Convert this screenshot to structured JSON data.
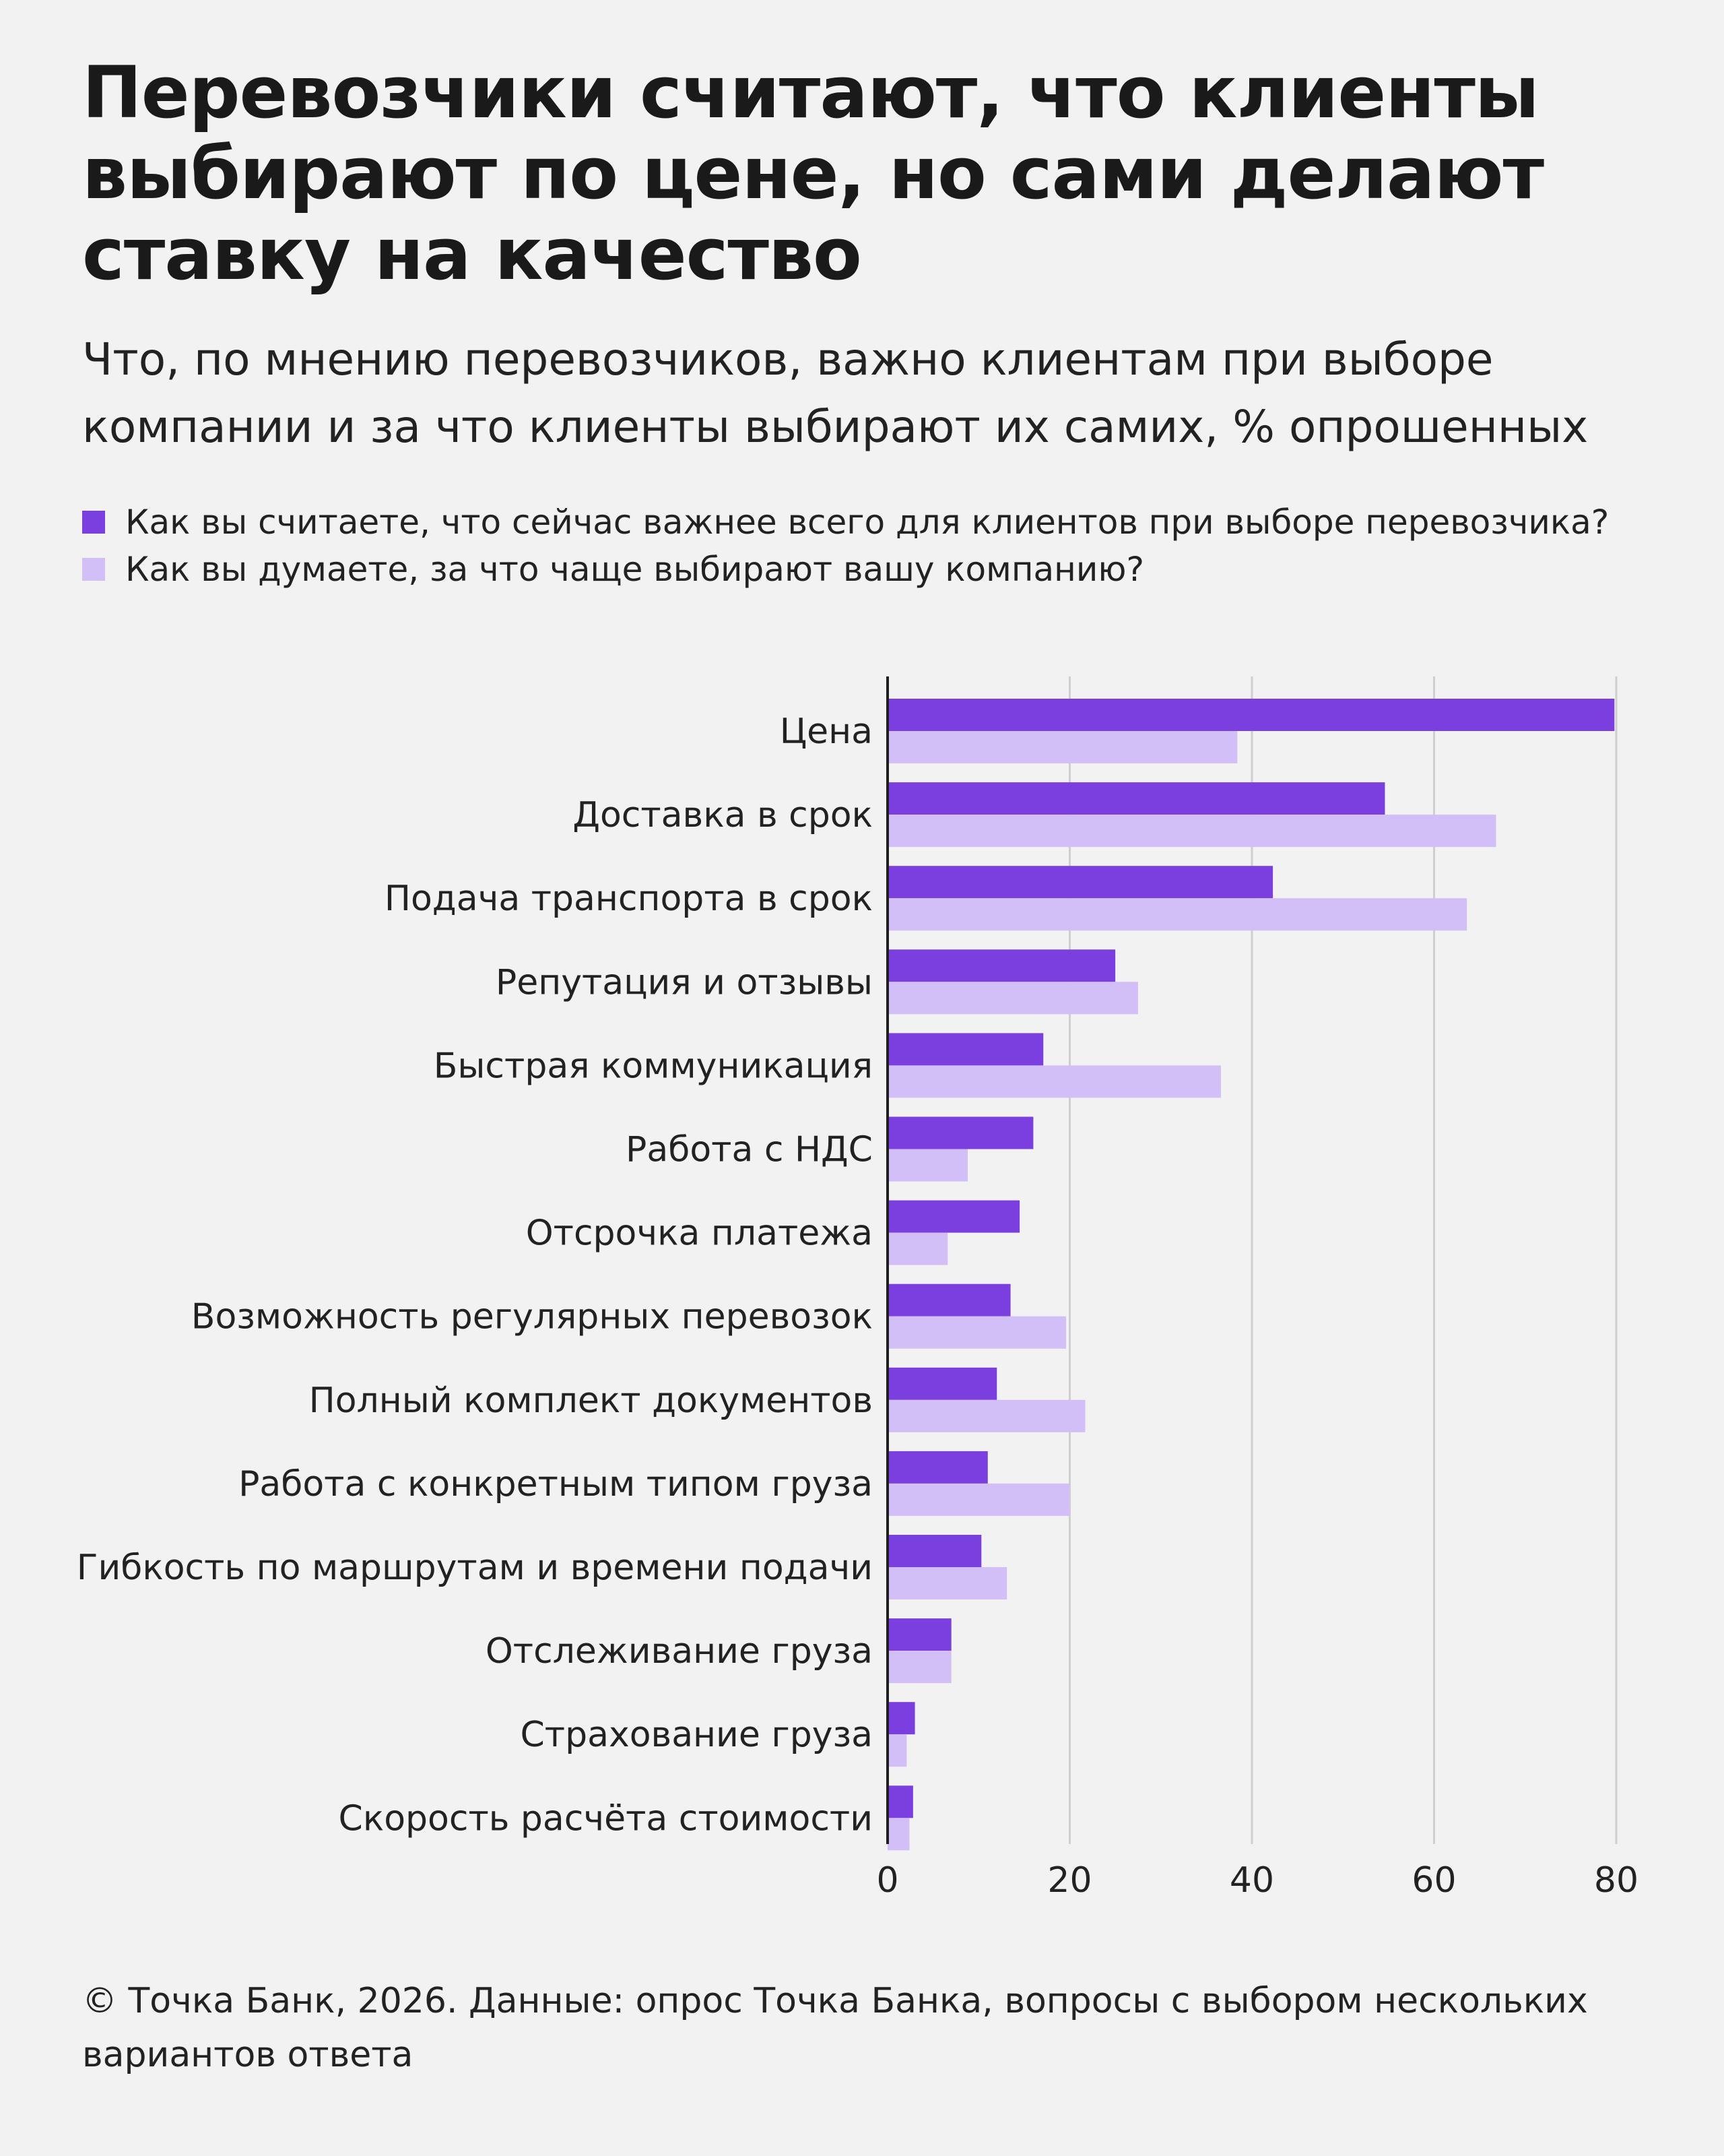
{
  "title": {
    "line1": "Перевозчики считают, что клиенты",
    "line2": "выбирают по цене, но сами делают",
    "line3": "ставку на качество"
  },
  "subtitle": {
    "line1": "Что, по мнению перевозчиков, важно клиентам при выборе",
    "line2": "компании и за что клиенты выбирают их самих, % опрошенных"
  },
  "footer": {
    "line1": "© Точка Банк, 2026. Данные: опрос Точка Банка, вопросы с выбором нескольких",
    "line2": "вариантов ответа"
  },
  "chart_data": {
    "type": "bar",
    "orientation": "horizontal",
    "categories": [
      "Цена",
      "Доставка в срок",
      "Подача транспорта в срок",
      "Репутация и отзывы",
      "Быстрая коммуникация",
      "Работа с НДС",
      "Отсрочка платежа",
      "Возможность регулярных перевозок",
      "Полный комплект документов",
      "Работа с конкретным типом груза",
      "Гибкость по маршрутам и времени подачи",
      "Отслеживание груза",
      "Страхование груза",
      "Скорость расчёта стоимости"
    ],
    "series": [
      {
        "name": "Как вы считаете, что сейчас важнее всего для клиентов при выборе перевозчика?",
        "color": "#7b3fe0",
        "values": [
          79.8,
          54.6,
          42.3,
          25.0,
          17.1,
          16.0,
          14.5,
          13.5,
          12.0,
          11.0,
          10.3,
          7.0,
          3.0,
          2.8
        ]
      },
      {
        "name": "Как вы думаете, за что чаще выбирают вашу компанию?",
        "color": "#d3bff7",
        "values": [
          38.4,
          66.8,
          63.6,
          27.5,
          36.6,
          8.8,
          6.6,
          19.6,
          21.7,
          20.0,
          13.1,
          7.0,
          2.1,
          2.4
        ]
      }
    ],
    "xlim": [
      0,
      80
    ],
    "ticks": [
      0,
      20,
      40,
      60,
      80
    ],
    "grid": true,
    "legend_position": "top-left"
  }
}
